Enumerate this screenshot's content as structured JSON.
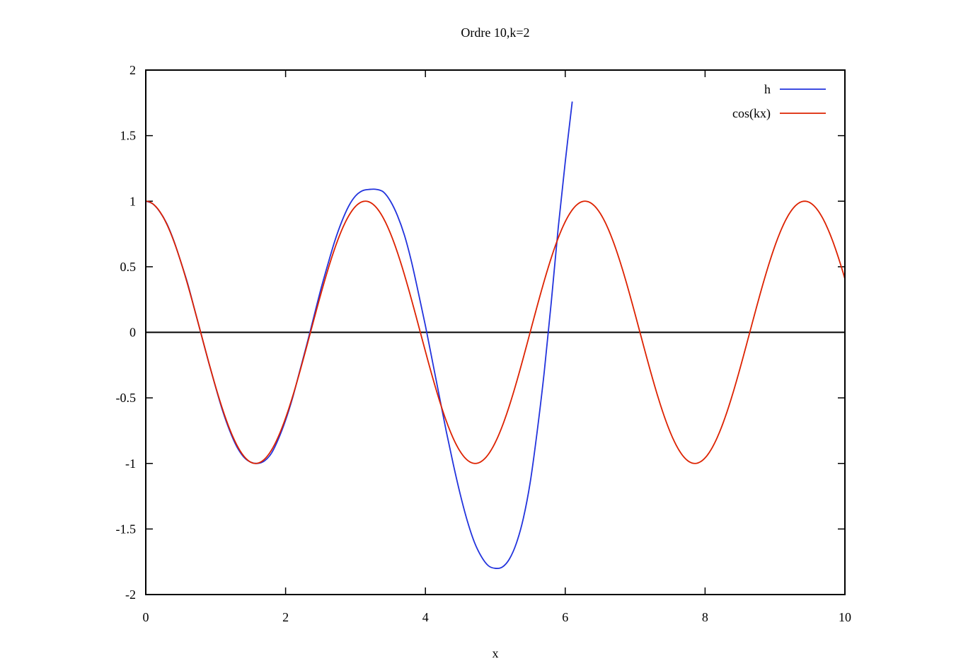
{
  "chart_data": {
    "type": "line",
    "title": "Ordre 10,k=2",
    "xlabel": "x",
    "ylabel": "",
    "xlim": [
      0,
      10
    ],
    "ylim": [
      -2,
      2
    ],
    "x_ticks": [
      0,
      2,
      4,
      6,
      8,
      10
    ],
    "y_ticks": [
      -2,
      -1.5,
      -1,
      -0.5,
      0,
      0.5,
      1,
      1.5,
      2
    ],
    "x_tick_labels": [
      "0",
      "2",
      "4",
      "6",
      "8",
      "10"
    ],
    "y_tick_labels": [
      "-2",
      "-1.5",
      "-1",
      "-0.5",
      "0",
      "0.5",
      "1",
      "1.5",
      "2"
    ],
    "grid": false,
    "zero_line": true,
    "legend_position": "top-right",
    "series": [
      {
        "name": "h",
        "color": "#2233dd",
        "x": [
          0,
          0.1,
          0.2,
          0.3,
          0.4,
          0.5,
          0.6,
          0.7,
          0.8,
          0.9,
          1.0,
          1.1,
          1.2,
          1.3,
          1.4,
          1.5,
          1.6,
          1.7,
          1.8,
          1.9,
          2.0,
          2.1,
          2.2,
          2.3,
          2.4,
          2.5,
          2.6,
          2.7,
          2.8,
          2.9,
          3.0,
          3.1,
          3.2,
          3.3,
          3.4,
          3.5,
          3.6,
          3.7,
          3.8,
          3.9,
          4.0,
          4.1,
          4.2,
          4.3,
          4.4,
          4.5,
          4.6,
          4.7,
          4.8,
          4.9,
          5.0,
          5.1,
          5.2,
          5.3,
          5.4,
          5.5,
          5.6,
          5.7,
          5.8,
          5.9,
          6.0,
          6.1
        ],
        "y": [
          1.0,
          0.98,
          0.92,
          0.83,
          0.7,
          0.54,
          0.37,
          0.17,
          -0.03,
          -0.23,
          -0.42,
          -0.6,
          -0.75,
          -0.87,
          -0.95,
          -0.99,
          -1.0,
          -0.98,
          -0.92,
          -0.81,
          -0.67,
          -0.5,
          -0.3,
          -0.1,
          0.11,
          0.32,
          0.51,
          0.69,
          0.84,
          0.96,
          1.04,
          1.08,
          1.09,
          1.09,
          1.07,
          1.0,
          0.89,
          0.74,
          0.54,
          0.3,
          0.05,
          -0.22,
          -0.49,
          -0.76,
          -1.01,
          -1.24,
          -1.44,
          -1.6,
          -1.71,
          -1.78,
          -1.8,
          -1.79,
          -1.73,
          -1.61,
          -1.42,
          -1.14,
          -0.75,
          -0.3,
          0.23,
          0.8,
          1.3,
          1.76
        ]
      },
      {
        "name": "cos(kx)",
        "color": "#dd2200",
        "function": "cos(2x)",
        "x_range": [
          0,
          10
        ]
      }
    ]
  }
}
